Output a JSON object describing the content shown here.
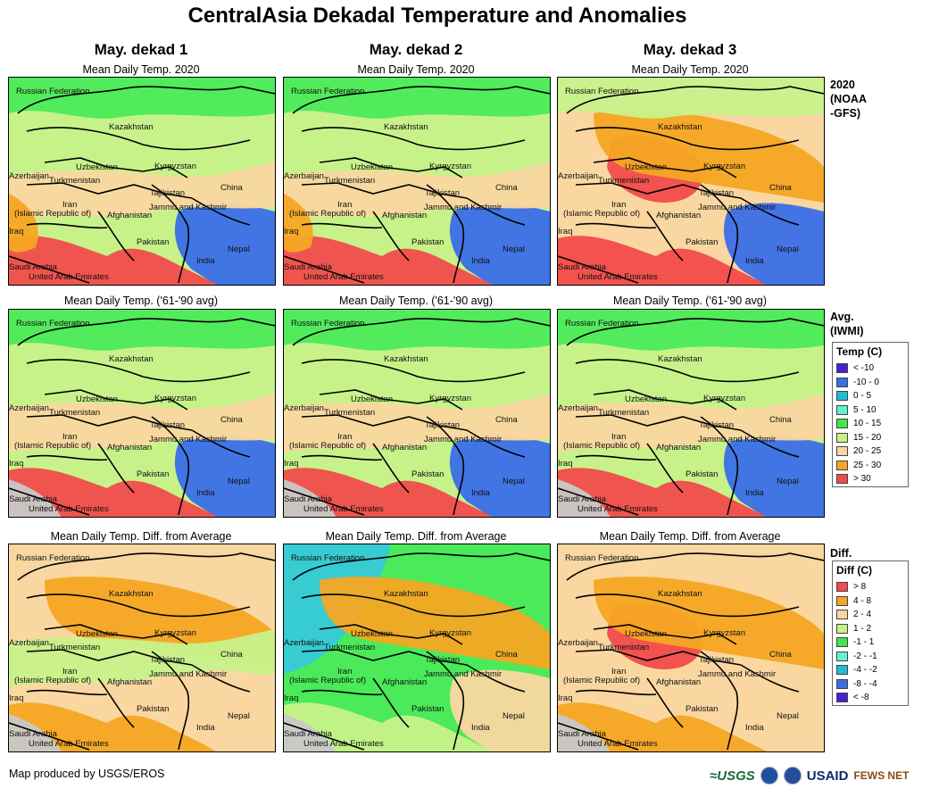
{
  "title": "CentralAsia Dekadal Temperature and Anomalies",
  "columns": [
    "May. dekad 1",
    "May. dekad 2",
    "May. dekad 3"
  ],
  "rows": [
    {
      "subtitle": "Mean Daily Temp. 2020",
      "label": "2020\n(NOAA\n-GFS)",
      "panels": [
        {
          "name": "panel-2020-dekad1",
          "background": "#c7f28a",
          "blobs": [
            {
              "shape": "china-cold",
              "color": "#3a6ee8"
            },
            {
              "shape": "south-hot",
              "color": "#f24b4b"
            },
            {
              "shape": "band-warm",
              "color": "#fad7a0"
            },
            {
              "shape": "west-warm",
              "color": "#f6a623"
            },
            {
              "shape": "north-mid",
              "color": "#4bea5a"
            }
          ]
        },
        {
          "name": "panel-2020-dekad2",
          "background": "#c7f28a",
          "blobs": [
            {
              "shape": "china-cold",
              "color": "#3a6ee8"
            },
            {
              "shape": "south-hot",
              "color": "#f24b4b"
            },
            {
              "shape": "band-warm",
              "color": "#fad7a0"
            },
            {
              "shape": "west-warm",
              "color": "#f6a623"
            },
            {
              "shape": "north-mid",
              "color": "#4bea5a"
            }
          ]
        },
        {
          "name": "panel-2020-dekad3",
          "background": "#fad7a0",
          "blobs": [
            {
              "shape": "china-cold",
              "color": "#3a6ee8"
            },
            {
              "shape": "south-hot",
              "color": "#f24b4b"
            },
            {
              "shape": "center-hot",
              "color": "#f24b4b"
            },
            {
              "shape": "north-warm",
              "color": "#f6a623"
            },
            {
              "shape": "north-mid",
              "color": "#c7f28a"
            }
          ]
        }
      ]
    },
    {
      "subtitle": "Mean Daily Temp. ('61-'90 avg)",
      "label": "Avg.\n(IWMI)",
      "panels": [
        {
          "name": "panel-avg-dekad1",
          "background": "#c7f28a",
          "blobs": [
            {
              "shape": "china-cold",
              "color": "#3a6ee8"
            },
            {
              "shape": "south-hot",
              "color": "#f24b4b"
            },
            {
              "shape": "band-warm",
              "color": "#fad7a0"
            },
            {
              "shape": "north-mid",
              "color": "#4bea5a"
            },
            {
              "shape": "arabia-grey",
              "color": "#c8c8c8"
            }
          ]
        },
        {
          "name": "panel-avg-dekad2",
          "background": "#c7f28a",
          "blobs": [
            {
              "shape": "china-cold",
              "color": "#3a6ee8"
            },
            {
              "shape": "south-hot",
              "color": "#f24b4b"
            },
            {
              "shape": "band-warm",
              "color": "#fad7a0"
            },
            {
              "shape": "north-mid",
              "color": "#4bea5a"
            },
            {
              "shape": "arabia-grey",
              "color": "#c8c8c8"
            }
          ]
        },
        {
          "name": "panel-avg-dekad3",
          "background": "#c7f28a",
          "blobs": [
            {
              "shape": "china-cold",
              "color": "#3a6ee8"
            },
            {
              "shape": "south-hot",
              "color": "#f24b4b"
            },
            {
              "shape": "band-warm",
              "color": "#fad7a0"
            },
            {
              "shape": "north-mid",
              "color": "#4bea5a"
            },
            {
              "shape": "arabia-grey",
              "color": "#c8c8c8"
            }
          ]
        }
      ]
    },
    {
      "subtitle": "Mean Daily Temp. Diff. from Average",
      "label": "Diff.",
      "panels": [
        {
          "name": "panel-diff-dekad1",
          "background": "#fad7a0",
          "blobs": [
            {
              "shape": "north-warm",
              "color": "#f6a623"
            },
            {
              "shape": "south-hot",
              "color": "#f6a623"
            },
            {
              "shape": "band-warm",
              "color": "#c7f28a"
            },
            {
              "shape": "china-cold",
              "color": "#fad7a0"
            },
            {
              "shape": "arabia-grey",
              "color": "#c8c8c8"
            }
          ]
        },
        {
          "name": "panel-diff-dekad2",
          "background": "#4bea5a",
          "blobs": [
            {
              "shape": "nw-cold",
              "color": "#36c9d9"
            },
            {
              "shape": "north-warm",
              "color": "#f6a623"
            },
            {
              "shape": "china-cold",
              "color": "#fad7a0"
            },
            {
              "shape": "south-hot",
              "color": "#c7f28a"
            },
            {
              "shape": "arabia-grey",
              "color": "#c8c8c8"
            }
          ]
        },
        {
          "name": "panel-diff-dekad3",
          "background": "#fad7a0",
          "blobs": [
            {
              "shape": "center-hot",
              "color": "#f24b4b"
            },
            {
              "shape": "north-warm",
              "color": "#f6a623"
            },
            {
              "shape": "china-cold",
              "color": "#fad7a0"
            },
            {
              "shape": "south-hot",
              "color": "#f6a623"
            },
            {
              "shape": "arabia-grey",
              "color": "#c8c8c8"
            }
          ]
        }
      ]
    }
  ],
  "place_labels": [
    "Russian Federation",
    "Kazakhstan",
    "Uzbekistan",
    "Kyrgyzstan",
    "Azerbaijan",
    "Turkmenistan",
    "Tajikistan",
    "China",
    "Iran",
    "(Islamic Republic of)",
    "Afghanistan",
    "Jammu and Kashmir",
    "Iraq",
    "Pakistan",
    "Nepal",
    "India",
    "Saudi Arabia",
    "United Arab Emirates"
  ],
  "legends": {
    "temp": {
      "title": "Temp (C)",
      "items": [
        {
          "label": "< -10",
          "color": "#4a1fd1"
        },
        {
          "label": "-10 - 0",
          "color": "#3a6ee8"
        },
        {
          "label": "0 - 5",
          "color": "#22bcd8"
        },
        {
          "label": "5 - 10",
          "color": "#63f0d2"
        },
        {
          "label": "10 - 15",
          "color": "#3fe84f"
        },
        {
          "label": "15 - 20",
          "color": "#c7f28a"
        },
        {
          "label": "20 - 25",
          "color": "#fad7a0"
        },
        {
          "label": "25 - 30",
          "color": "#f6a623"
        },
        {
          "label": "> 30",
          "color": "#f24b4b"
        }
      ]
    },
    "diff": {
      "title": "Diff (C)",
      "items": [
        {
          "label": "> 8",
          "color": "#f24b4b"
        },
        {
          "label": "4 - 8",
          "color": "#f6a623"
        },
        {
          "label": "2 - 4",
          "color": "#fad7a0"
        },
        {
          "label": "1 - 2",
          "color": "#c7f28a"
        },
        {
          "label": "-1 - 1",
          "color": "#3fe84f"
        },
        {
          "label": "-2 - -1",
          "color": "#63f0d2"
        },
        {
          "label": "-4 - -2",
          "color": "#22bcd8"
        },
        {
          "label": "-8 - -4",
          "color": "#3a6ee8"
        },
        {
          "label": "< -8",
          "color": "#4a1fd1"
        }
      ]
    }
  },
  "footer": {
    "credit": "Map produced by USGS/EROS",
    "logos": [
      "≈USGS",
      "USAID",
      "FEWS NET"
    ]
  }
}
